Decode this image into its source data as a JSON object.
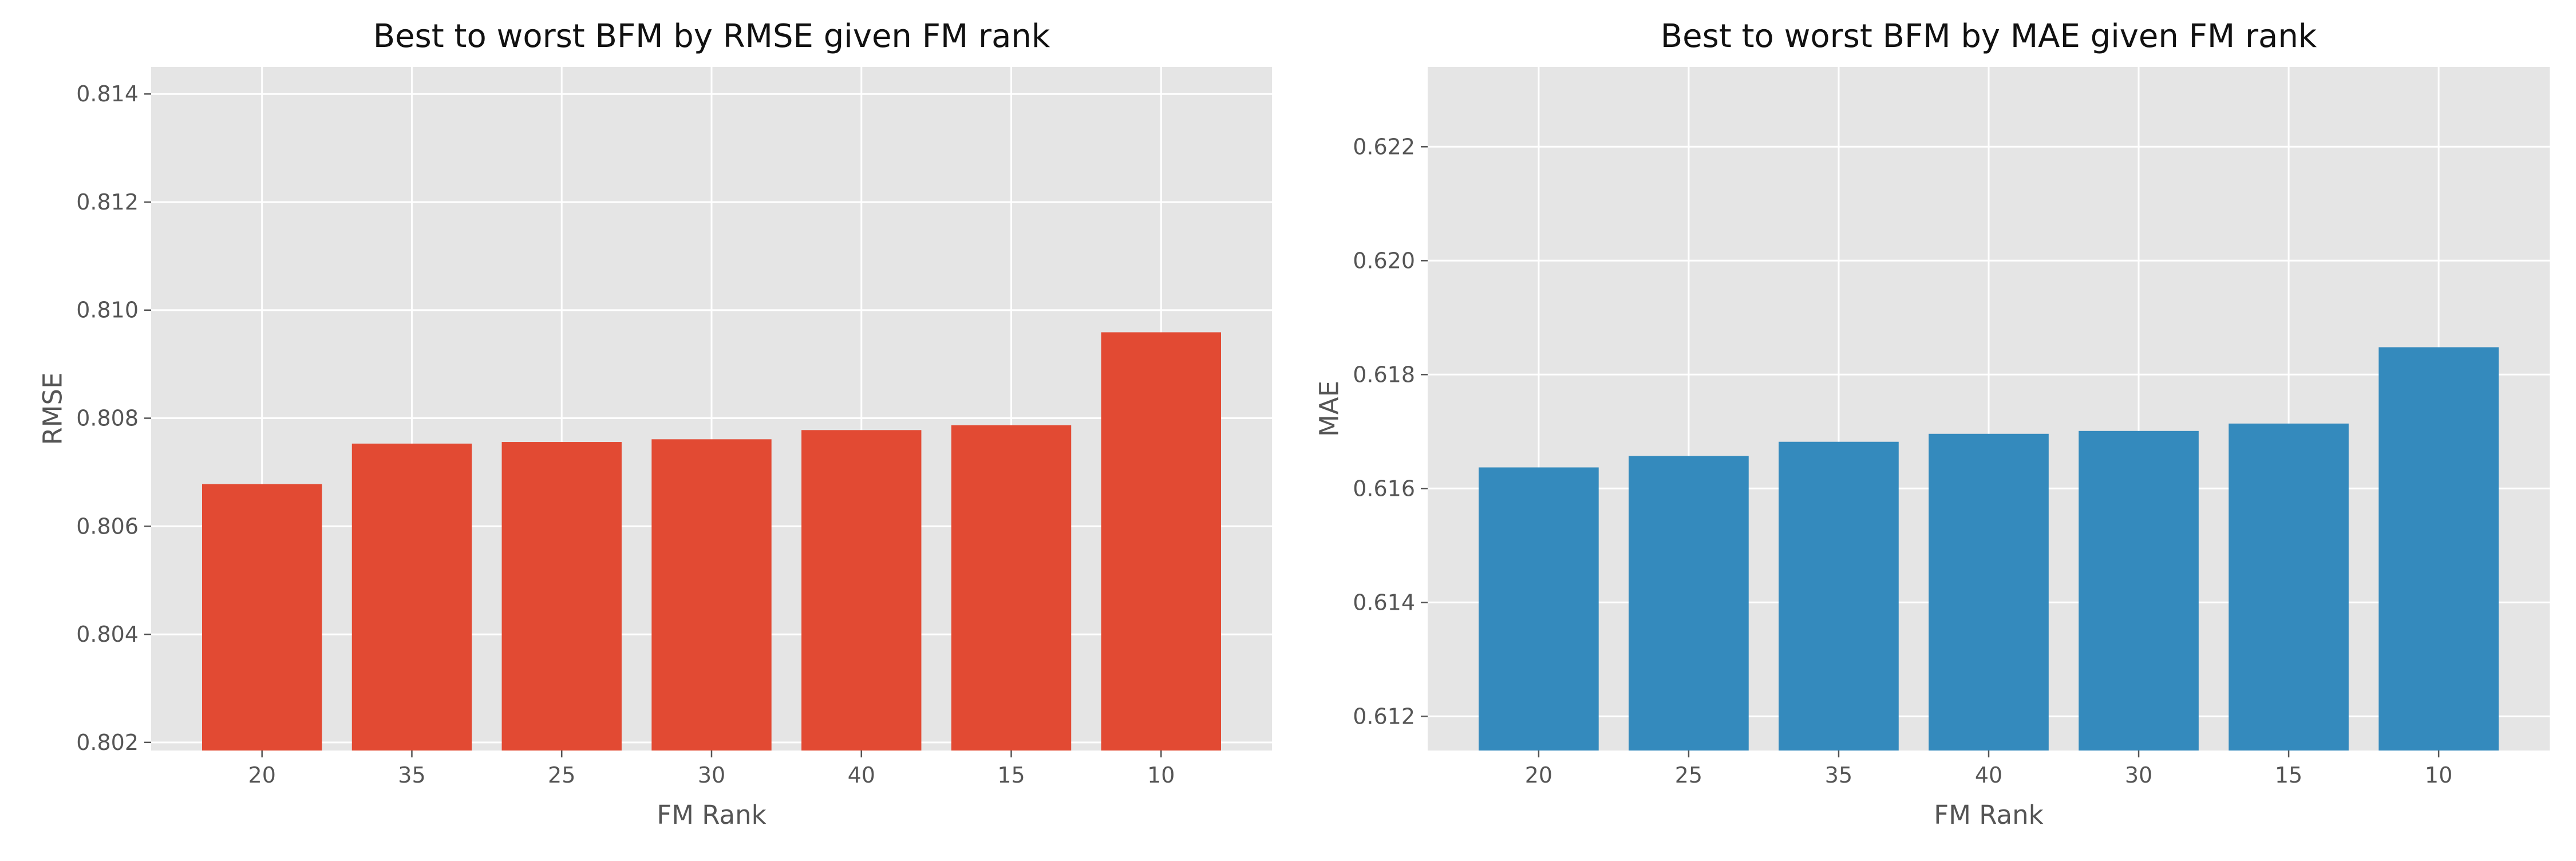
{
  "chart_data": [
    {
      "type": "bar",
      "title": "Best to worst BFM by RMSE given FM rank",
      "xlabel": "FM Rank",
      "ylabel": "RMSE",
      "categories": [
        "20",
        "35",
        "25",
        "30",
        "40",
        "15",
        "10"
      ],
      "values": [
        0.80678,
        0.80753,
        0.80756,
        0.80761,
        0.80778,
        0.80787,
        0.80959
      ],
      "ylim": [
        0.80185,
        0.8145
      ],
      "yticks": [
        "0.802",
        "0.804",
        "0.806",
        "0.808",
        "0.810",
        "0.812",
        "0.814"
      ],
      "bar_color": "#E24A33",
      "grid": true
    },
    {
      "type": "bar",
      "title": "Best to worst BFM by MAE given FM rank",
      "xlabel": "FM Rank",
      "ylabel": "MAE",
      "categories": [
        "20",
        "25",
        "35",
        "40",
        "30",
        "15",
        "10"
      ],
      "values": [
        0.61637,
        0.61657,
        0.61682,
        0.61696,
        0.61701,
        0.61714,
        0.61848
      ],
      "ylim": [
        0.6114,
        0.6234
      ],
      "yticks": [
        "0.612",
        "0.614",
        "0.616",
        "0.618",
        "0.620",
        "0.622"
      ],
      "bar_color": "#348ABD",
      "grid": true
    }
  ]
}
